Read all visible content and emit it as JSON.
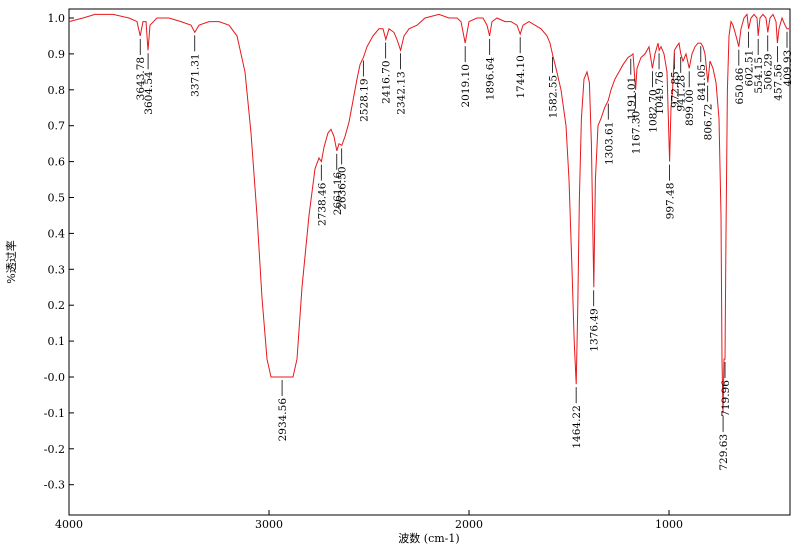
{
  "chart_data": {
    "type": "line",
    "title": "",
    "xlabel": "波数 (cm-1)",
    "ylabel": "%透过率",
    "xlim": [
      4000,
      400
    ],
    "ylim": [
      -0.38,
      1.02
    ],
    "x_reversed": true,
    "x_ticks": [
      {
        "value": 4000,
        "label": "4000"
      },
      {
        "value": 3000,
        "label": "3000"
      },
      {
        "value": 2000,
        "label": "2000"
      },
      {
        "value": 1000,
        "label": "1000"
      }
    ],
    "y_ticks": [
      {
        "value": 1.0,
        "label": "1.0"
      },
      {
        "value": 0.9,
        "label": "0.9"
      },
      {
        "value": 0.8,
        "label": "0.8"
      },
      {
        "value": 0.7,
        "label": "0.7"
      },
      {
        "value": 0.6,
        "label": "0.6"
      },
      {
        "value": 0.5,
        "label": "0.5"
      },
      {
        "value": 0.4,
        "label": "0.4"
      },
      {
        "value": 0.3,
        "label": "0.3"
      },
      {
        "value": 0.2,
        "label": "0.2"
      },
      {
        "value": 0.1,
        "label": "0.1"
      },
      {
        "value": 0.0,
        "label": "-0.0"
      },
      {
        "value": -0.1,
        "label": "-0.1"
      },
      {
        "value": -0.2,
        "label": "-0.2"
      },
      {
        "value": -0.3,
        "label": "-0.3"
      }
    ],
    "grid": false,
    "line_color": "#e8171b",
    "series": [
      {
        "color": "#e8171b",
        "points": [
          [
            4000,
            0.99
          ],
          [
            3930,
            1.0
          ],
          [
            3870,
            1.01
          ],
          [
            3780,
            1.01
          ],
          [
            3700,
            1.0
          ],
          [
            3660,
            0.99
          ],
          [
            3644,
            0.95
          ],
          [
            3630,
            0.99
          ],
          [
            3615,
            0.99
          ],
          [
            3605,
            0.91
          ],
          [
            3595,
            0.98
          ],
          [
            3560,
            1.0
          ],
          [
            3500,
            1.0
          ],
          [
            3440,
            0.99
          ],
          [
            3390,
            0.98
          ],
          [
            3371,
            0.96
          ],
          [
            3350,
            0.98
          ],
          [
            3300,
            0.99
          ],
          [
            3250,
            0.99
          ],
          [
            3200,
            0.98
          ],
          [
            3160,
            0.95
          ],
          [
            3120,
            0.85
          ],
          [
            3090,
            0.68
          ],
          [
            3060,
            0.45
          ],
          [
            3035,
            0.22
          ],
          [
            3010,
            0.05
          ],
          [
            2990,
            0.0
          ],
          [
            2935,
            0.0
          ],
          [
            2900,
            0.0
          ],
          [
            2880,
            0.0
          ],
          [
            2860,
            0.05
          ],
          [
            2835,
            0.25
          ],
          [
            2800,
            0.45
          ],
          [
            2770,
            0.58
          ],
          [
            2750,
            0.61
          ],
          [
            2738,
            0.6
          ],
          [
            2725,
            0.64
          ],
          [
            2705,
            0.68
          ],
          [
            2690,
            0.69
          ],
          [
            2675,
            0.67
          ],
          [
            2661,
            0.63
          ],
          [
            2650,
            0.65
          ],
          [
            2636,
            0.645
          ],
          [
            2620,
            0.67
          ],
          [
            2600,
            0.71
          ],
          [
            2580,
            0.77
          ],
          [
            2560,
            0.83
          ],
          [
            2545,
            0.87
          ],
          [
            2528,
            0.89
          ],
          [
            2510,
            0.92
          ],
          [
            2480,
            0.95
          ],
          [
            2450,
            0.97
          ],
          [
            2430,
            0.97
          ],
          [
            2416,
            0.94
          ],
          [
            2400,
            0.97
          ],
          [
            2375,
            0.96
          ],
          [
            2360,
            0.94
          ],
          [
            2342,
            0.91
          ],
          [
            2325,
            0.95
          ],
          [
            2300,
            0.97
          ],
          [
            2260,
            0.98
          ],
          [
            2220,
            1.0
          ],
          [
            2150,
            1.01
          ],
          [
            2100,
            1.0
          ],
          [
            2060,
            1.0
          ],
          [
            2040,
            0.99
          ],
          [
            2019,
            0.93
          ],
          [
            2000,
            0.99
          ],
          [
            1960,
            1.0
          ],
          [
            1930,
            1.0
          ],
          [
            1910,
            0.98
          ],
          [
            1897,
            0.95
          ],
          [
            1885,
            0.99
          ],
          [
            1860,
            1.0
          ],
          [
            1820,
            0.99
          ],
          [
            1790,
            0.99
          ],
          [
            1760,
            0.98
          ],
          [
            1744,
            0.955
          ],
          [
            1730,
            0.98
          ],
          [
            1700,
            0.99
          ],
          [
            1670,
            0.98
          ],
          [
            1640,
            0.97
          ],
          [
            1610,
            0.95
          ],
          [
            1595,
            0.93
          ],
          [
            1583,
            0.9
          ],
          [
            1565,
            0.86
          ],
          [
            1540,
            0.8
          ],
          [
            1515,
            0.7
          ],
          [
            1500,
            0.55
          ],
          [
            1485,
            0.3
          ],
          [
            1474,
            0.1
          ],
          [
            1464,
            -0.02
          ],
          [
            1456,
            0.2
          ],
          [
            1448,
            0.5
          ],
          [
            1438,
            0.72
          ],
          [
            1425,
            0.83
          ],
          [
            1410,
            0.85
          ],
          [
            1398,
            0.82
          ],
          [
            1388,
            0.65
          ],
          [
            1376,
            0.25
          ],
          [
            1368,
            0.55
          ],
          [
            1355,
            0.7
          ],
          [
            1340,
            0.72
          ],
          [
            1322,
            0.75
          ],
          [
            1304,
            0.77
          ],
          [
            1290,
            0.8
          ],
          [
            1270,
            0.83
          ],
          [
            1250,
            0.85
          ],
          [
            1230,
            0.87
          ],
          [
            1205,
            0.89
          ],
          [
            1191,
            0.895
          ],
          [
            1180,
            0.9
          ],
          [
            1167,
            0.8
          ],
          [
            1160,
            0.86
          ],
          [
            1140,
            0.89
          ],
          [
            1120,
            0.9
          ],
          [
            1100,
            0.92
          ],
          [
            1083,
            0.86
          ],
          [
            1070,
            0.9
          ],
          [
            1055,
            0.93
          ],
          [
            1049,
            0.91
          ],
          [
            1040,
            0.92
          ],
          [
            1025,
            0.9
          ],
          [
            1010,
            0.85
          ],
          [
            997,
            0.6
          ],
          [
            990,
            0.75
          ],
          [
            982,
            0.8
          ],
          [
            973,
            0.91
          ],
          [
            962,
            0.92
          ],
          [
            950,
            0.93
          ],
          [
            941,
            0.9
          ],
          [
            930,
            0.88
          ],
          [
            915,
            0.9
          ],
          [
            899,
            0.86
          ],
          [
            885,
            0.9
          ],
          [
            870,
            0.92
          ],
          [
            855,
            0.93
          ],
          [
            841,
            0.93
          ],
          [
            830,
            0.92
          ],
          [
            820,
            0.9
          ],
          [
            806,
            0.82
          ],
          [
            795,
            0.88
          ],
          [
            780,
            0.86
          ],
          [
            765,
            0.82
          ],
          [
            750,
            0.72
          ],
          [
            740,
            0.45
          ],
          [
            735,
            0.05
          ],
          [
            730,
            -0.1
          ],
          [
            725,
            0.05
          ],
          [
            720,
            0.05
          ],
          [
            715,
            0.4
          ],
          [
            708,
            0.8
          ],
          [
            700,
            0.95
          ],
          [
            690,
            0.99
          ],
          [
            680,
            0.98
          ],
          [
            665,
            0.95
          ],
          [
            651,
            0.92
          ],
          [
            640,
            0.97
          ],
          [
            625,
            1.0
          ],
          [
            610,
            1.01
          ],
          [
            602,
            0.97
          ],
          [
            590,
            1.0
          ],
          [
            575,
            1.01
          ],
          [
            560,
            1.0
          ],
          [
            554,
            0.95
          ],
          [
            545,
            1.0
          ],
          [
            530,
            1.01
          ],
          [
            515,
            1.0
          ],
          [
            506,
            0.96
          ],
          [
            495,
            1.0
          ],
          [
            480,
            1.01
          ],
          [
            465,
            0.99
          ],
          [
            458,
            0.93
          ],
          [
            450,
            0.97
          ],
          [
            435,
            1.0
          ],
          [
            420,
            0.98
          ],
          [
            410,
            0.97
          ],
          [
            400,
            0.97
          ]
        ]
      }
    ],
    "peak_labels": [
      {
        "x": 3643.78,
        "y": 0.95,
        "label": "3643.78"
      },
      {
        "x": 3604.54,
        "y": 0.91,
        "label": "3604.54"
      },
      {
        "x": 3371.31,
        "y": 0.96,
        "label": "3371.31"
      },
      {
        "x": 2934.56,
        "y": 0.0,
        "label": "2934.56"
      },
      {
        "x": 2738.46,
        "y": 0.6,
        "label": "2738.46"
      },
      {
        "x": 2661.16,
        "y": 0.63,
        "label": "2661.16"
      },
      {
        "x": 2636.5,
        "y": 0.645,
        "label": "2636.50"
      },
      {
        "x": 2528.19,
        "y": 0.89,
        "label": "2528.19"
      },
      {
        "x": 2416.7,
        "y": 0.94,
        "label": "2416.70"
      },
      {
        "x": 2342.13,
        "y": 0.91,
        "label": "2342.13"
      },
      {
        "x": 2019.1,
        "y": 0.93,
        "label": "2019.10"
      },
      {
        "x": 1896.64,
        "y": 0.95,
        "label": "1896.64"
      },
      {
        "x": 1744.1,
        "y": 0.955,
        "label": "1744.10"
      },
      {
        "x": 1582.55,
        "y": 0.9,
        "label": "1582.55"
      },
      {
        "x": 1464.22,
        "y": -0.02,
        "label": "1464.22"
      },
      {
        "x": 1376.49,
        "y": 0.25,
        "label": "1376.49"
      },
      {
        "x": 1303.61,
        "y": 0.77,
        "label": "1303.61"
      },
      {
        "x": 1191.01,
        "y": 0.895,
        "label": "1191.01"
      },
      {
        "x": 1167.3,
        "y": 0.8,
        "label": "1167.30"
      },
      {
        "x": 1082.7,
        "y": 0.86,
        "label": "1082.70"
      },
      {
        "x": 1049.76,
        "y": 0.91,
        "label": "1049.76"
      },
      {
        "x": 997.48,
        "y": 0.6,
        "label": "997.48"
      },
      {
        "x": 972.85,
        "y": 0.91,
        "label": "972.85"
      },
      {
        "x": 941.28,
        "y": 0.9,
        "label": "941.28"
      },
      {
        "x": 899.0,
        "y": 0.86,
        "label": "899.00"
      },
      {
        "x": 841.05,
        "y": 0.93,
        "label": "841.05"
      },
      {
        "x": 806.72,
        "y": 0.82,
        "label": "806.72"
      },
      {
        "x": 729.63,
        "y": -0.1,
        "label": "729.63"
      },
      {
        "x": 719.96,
        "y": 0.05,
        "label": "719.96"
      },
      {
        "x": 650.86,
        "y": 0.92,
        "label": "650.86"
      },
      {
        "x": 602.51,
        "y": 0.97,
        "label": "602.51"
      },
      {
        "x": 554.15,
        "y": 0.95,
        "label": "554.15"
      },
      {
        "x": 506.29,
        "y": 0.96,
        "label": "506.29"
      },
      {
        "x": 457.56,
        "y": 0.93,
        "label": "457.56"
      },
      {
        "x": 409.93,
        "y": 0.97,
        "label": "409.93"
      }
    ]
  }
}
